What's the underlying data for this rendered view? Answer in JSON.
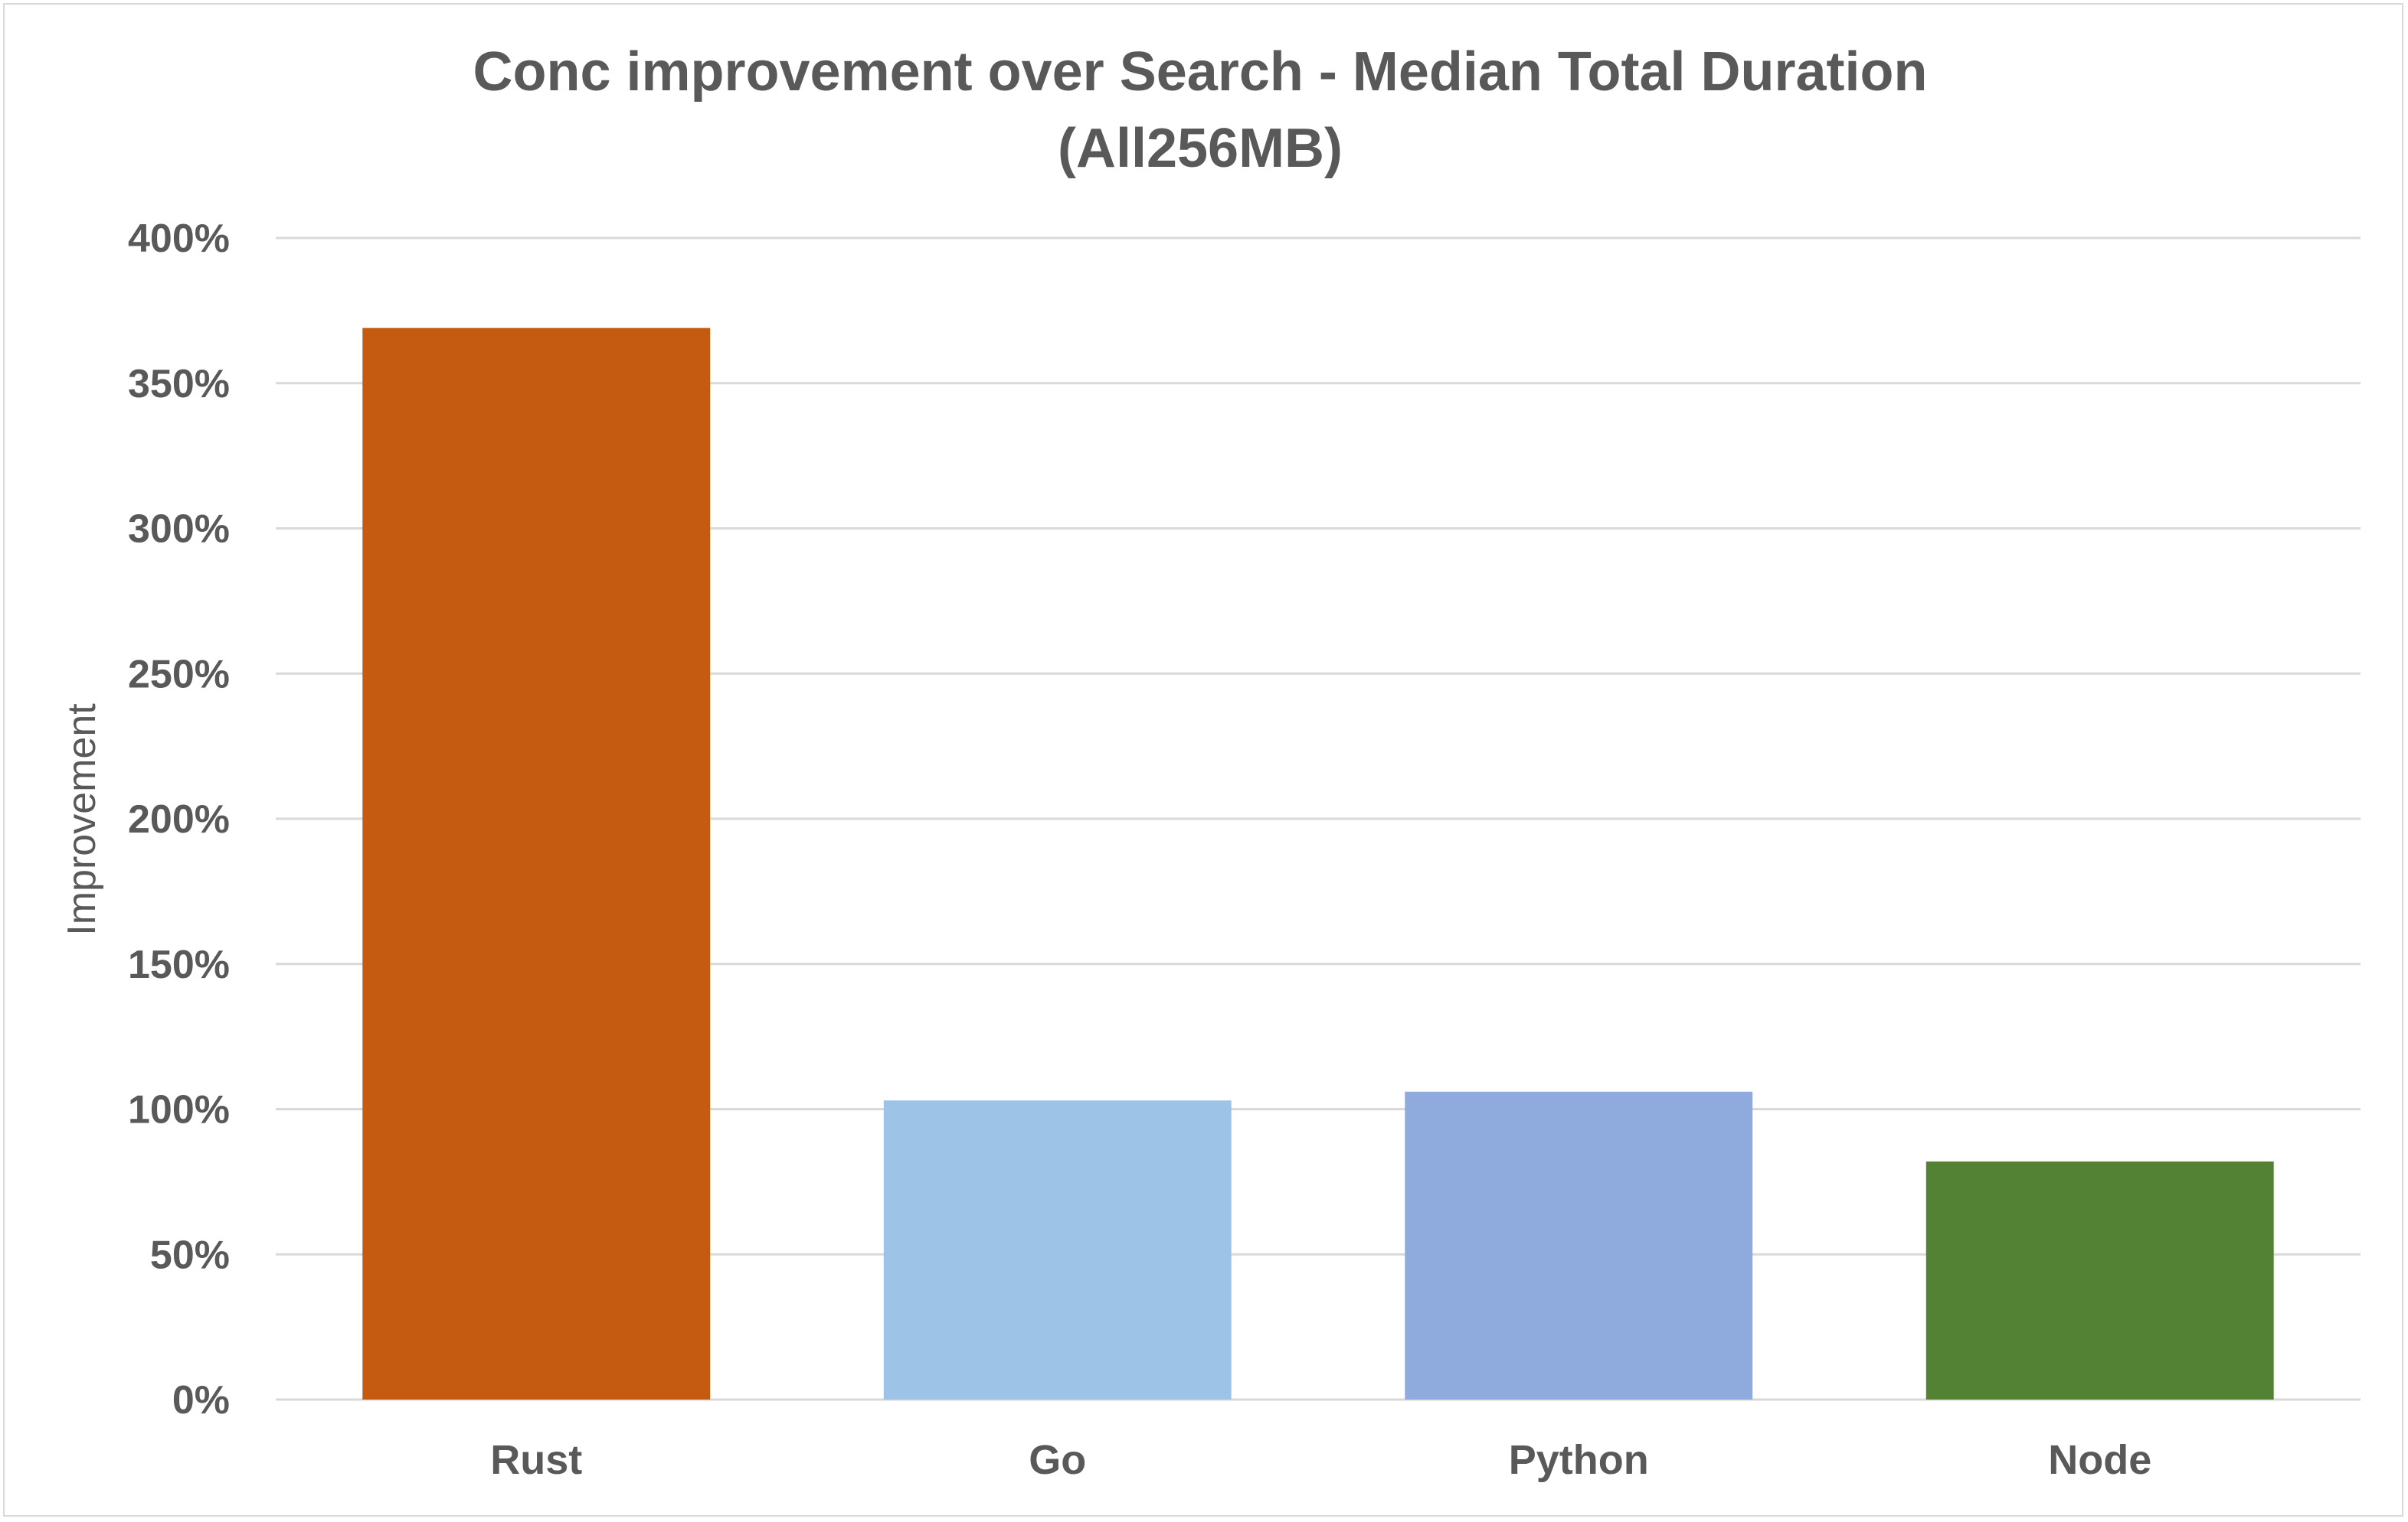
{
  "chart_data": {
    "type": "bar",
    "title_lines": [
      "Conc improvement over Search - Median Total Duration",
      "(All256MB)"
    ],
    "ylabel": "Improvement",
    "xlabel": "",
    "categories": [
      "Rust",
      "Go",
      "Python",
      "Node"
    ],
    "values": [
      369,
      103,
      106,
      82
    ],
    "value_unit": "%",
    "colors": [
      "#c55a11",
      "#9dc3e6",
      "#8faadc",
      "#548235"
    ],
    "ylim": [
      0,
      400
    ],
    "yticks": [
      0,
      50,
      100,
      150,
      200,
      250,
      300,
      350,
      400
    ],
    "ytick_labels": [
      "0%",
      "50%",
      "100%",
      "150%",
      "200%",
      "250%",
      "300%",
      "350%",
      "400%"
    ],
    "grid": true,
    "gridline_color": "#d9d9d9",
    "legend": "none"
  }
}
